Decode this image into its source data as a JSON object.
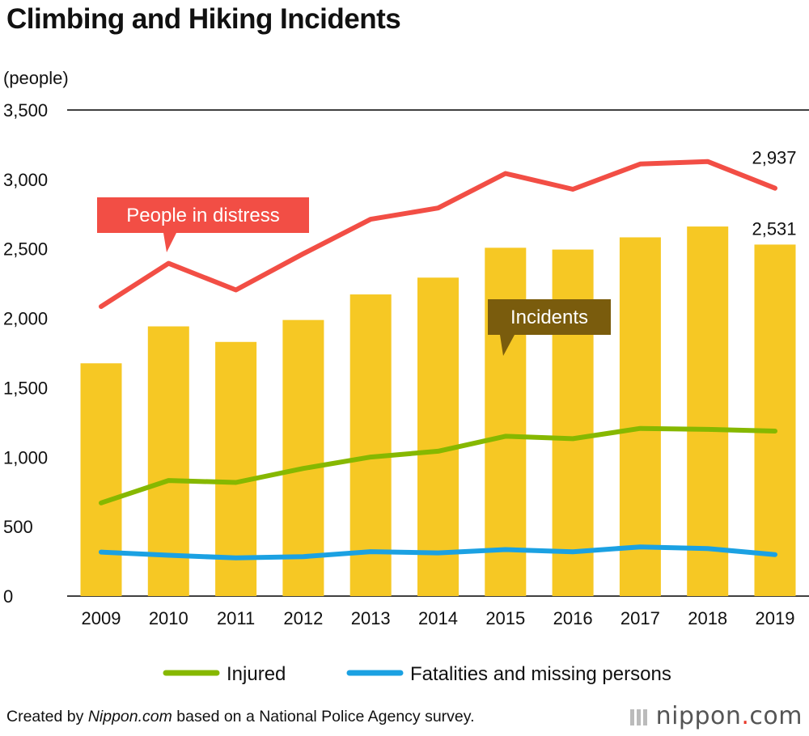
{
  "title": "Climbing and Hiking Incidents",
  "footer": {
    "prefix": "Created by ",
    "source": "Nippon.com",
    "suffix": " based on a National Police Agency survey."
  },
  "logo": {
    "name": "nippon",
    "dot": ".",
    "tld": "com"
  },
  "colors": {
    "bars": "#f6c824",
    "distress": "#f24e45",
    "injured": "#86b800",
    "fatalities": "#1ba1e2",
    "incidents_callout": "#7a5c0d",
    "axis": "#000000"
  },
  "chart_data": {
    "type": "bar",
    "title": "Climbing and Hiking Incidents",
    "ylabel": "(people)",
    "xlabel": "",
    "ylim": [
      0,
      3500
    ],
    "yticks": [
      0,
      500,
      1000,
      1500,
      2000,
      2500,
      3000,
      3500
    ],
    "ytick_labels": [
      "0",
      "500",
      "1,000",
      "1,500",
      "2,000",
      "2,500",
      "3,000",
      "3,500"
    ],
    "categories": [
      "2009",
      "2010",
      "2011",
      "2012",
      "2013",
      "2014",
      "2015",
      "2016",
      "2017",
      "2018",
      "2019"
    ],
    "grid": "top line only",
    "series": [
      {
        "name": "Incidents",
        "type": "bar",
        "values": [
          1676,
          1942,
          1830,
          1988,
          2172,
          2293,
          2508,
          2495,
          2583,
          2661,
          2531
        ]
      },
      {
        "name": "People in distress",
        "type": "line",
        "values": [
          2085,
          2396,
          2204,
          2465,
          2713,
          2794,
          3043,
          2929,
          3111,
          3129,
          2937
        ]
      },
      {
        "name": "Injured",
        "type": "line",
        "values": [
          671,
          832,
          818,
          919,
          1001,
          1043,
          1151,
          1133,
          1207,
          1200,
          1188
        ]
      },
      {
        "name": "Fatalities and missing persons",
        "type": "line",
        "values": [
          317,
          294,
          275,
          284,
          320,
          311,
          335,
          319,
          354,
          342,
          299
        ]
      }
    ],
    "callouts": {
      "distress": "People in distress",
      "incidents": "Incidents"
    },
    "end_labels": {
      "distress": "2,937",
      "incidents": "2,531"
    },
    "legend": {
      "placement": "bottom-center",
      "items": [
        "Injured",
        "Fatalities and missing persons"
      ]
    }
  }
}
